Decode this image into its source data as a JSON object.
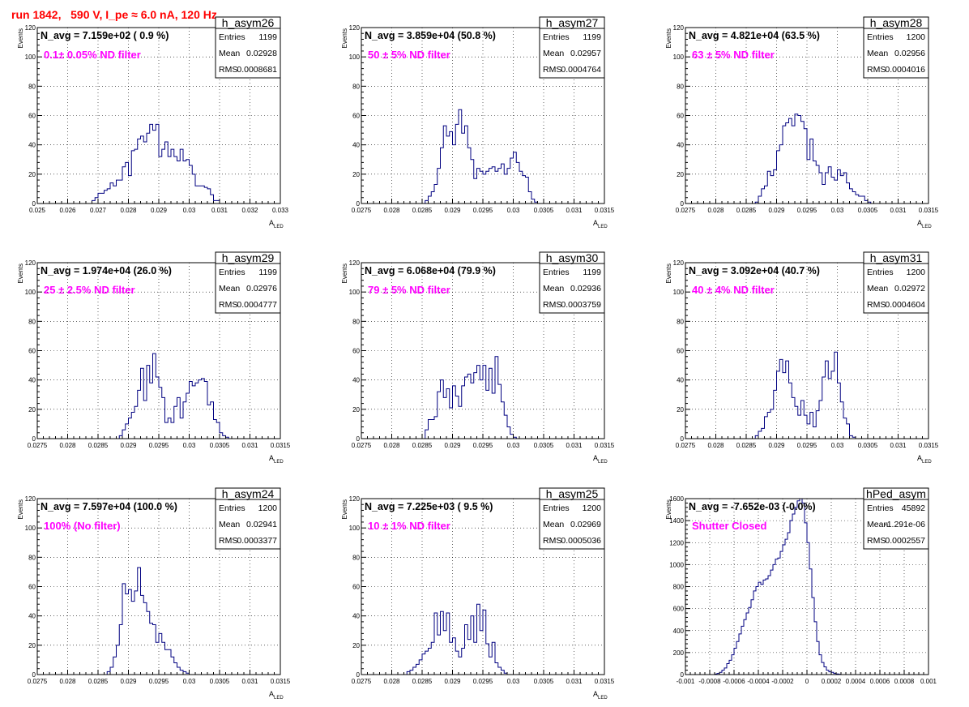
{
  "canvas_title": "run 1842,   590 V, I_pe ≈ 6.0 nA, 120 Hz",
  "colors": {
    "title": "#ff0000",
    "annotation": "#ff00ff",
    "histogram": "#000080",
    "axis": "#000000"
  },
  "chart_data": [
    {
      "type": "bar",
      "name": "h_asym26",
      "header": "N_avg = 7.159e+02 ( 0.9 %)",
      "filter_label": "0.1± 0.05% ND filter",
      "stats": {
        "Entries": "1199",
        "Mean": "0.02928",
        "RMS": "0.0008681"
      },
      "xlabel": "A",
      "xlabel_sub": "LED",
      "ylabel": "Events",
      "xlim": [
        0.025,
        0.033
      ],
      "ylim": [
        0,
        120
      ],
      "grid": true,
      "x_ticks": [
        "0.025",
        "0.026",
        "0.027",
        "0.028",
        "0.029",
        "0.03",
        "0.031",
        "0.032",
        "0.033"
      ],
      "y_ticks": [
        "0",
        "20",
        "40",
        "60",
        "80",
        "100",
        "120"
      ],
      "bin_width": 0.0001,
      "x_start": 0.0268,
      "counts": [
        2,
        4,
        7,
        7,
        9,
        10,
        14,
        12,
        16,
        16,
        25,
        28,
        19,
        36,
        37,
        44,
        46,
        42,
        48,
        54,
        50,
        54,
        32,
        37,
        42,
        32,
        37,
        32,
        29,
        37,
        29,
        30,
        26,
        20,
        12,
        12,
        12,
        11,
        10,
        6,
        2,
        2,
        0
      ]
    },
    {
      "type": "bar",
      "name": "h_asym27",
      "header": "N_avg = 3.859e+04 (50.8 %)",
      "filter_label": "50 ± 5% ND filter",
      "stats": {
        "Entries": "1199",
        "Mean": "0.02957",
        "RMS": "0.0004764"
      },
      "xlabel": "A",
      "xlabel_sub": "LED",
      "ylabel": "Events",
      "xlim": [
        0.0275,
        0.0315
      ],
      "ylim": [
        0,
        120
      ],
      "grid": true,
      "x_ticks": [
        "0.0275",
        "0.028",
        "0.0285",
        "0.029",
        "0.0295",
        "0.03",
        "0.0305",
        "0.031",
        "0.0315"
      ],
      "y_ticks": [
        "0",
        "20",
        "40",
        "60",
        "80",
        "100",
        "120"
      ],
      "bin_width": 5e-05,
      "x_start": 0.02855,
      "counts": [
        2,
        5,
        8,
        13,
        24,
        38,
        53,
        46,
        49,
        40,
        54,
        64,
        48,
        53,
        38,
        30,
        17,
        24,
        22,
        20,
        22,
        24,
        25,
        22,
        24,
        27,
        20,
        24,
        31,
        35,
        28,
        22,
        19,
        18,
        8,
        3,
        1,
        0
      ]
    },
    {
      "type": "bar",
      "name": "h_asym28",
      "header": "N_avg = 4.821e+04 (63.5 %)",
      "filter_label": "63 ± 5% ND filter",
      "stats": {
        "Entries": "1200",
        "Mean": "0.02956",
        "RMS": "0.0004016"
      },
      "xlabel": "A",
      "xlabel_sub": "LED",
      "ylabel": "Events",
      "xlim": [
        0.0275,
        0.0315
      ],
      "ylim": [
        0,
        120
      ],
      "grid": true,
      "x_ticks": [
        "0.0275",
        "0.028",
        "0.0285",
        "0.029",
        "0.0295",
        "0.03",
        "0.0305",
        "0.031",
        "0.0315"
      ],
      "y_ticks": [
        "0",
        "20",
        "40",
        "60",
        "80",
        "100",
        "120"
      ],
      "bin_width": 5e-05,
      "x_start": 0.02865,
      "counts": [
        1,
        5,
        10,
        12,
        22,
        19,
        23,
        36,
        40,
        53,
        55,
        58,
        53,
        61,
        60,
        56,
        51,
        30,
        44,
        29,
        26,
        21,
        13,
        21,
        25,
        18,
        16,
        23,
        19,
        21,
        14,
        10,
        8,
        6,
        5,
        5,
        2,
        1,
        0
      ]
    },
    {
      "type": "bar",
      "name": "h_asym29",
      "header": "N_avg = 1.974e+04 (26.0 %)",
      "filter_label": "25 ± 2.5% ND filter",
      "stats": {
        "Entries": "1199",
        "Mean": "0.02976",
        "RMS": "0.0004777"
      },
      "xlabel": "A",
      "xlabel_sub": "LED",
      "ylabel": "Events",
      "xlim": [
        0.0275,
        0.0315
      ],
      "ylim": [
        0,
        120
      ],
      "grid": true,
      "x_ticks": [
        "0.0275",
        "0.028",
        "0.0285",
        "0.029",
        "0.0295",
        "0.03",
        "0.0305",
        "0.031",
        "0.0315"
      ],
      "y_ticks": [
        "0",
        "20",
        "40",
        "60",
        "80",
        "100",
        "120"
      ],
      "bin_width": 5e-05,
      "x_start": 0.02885,
      "counts": [
        2,
        6,
        10,
        14,
        18,
        22,
        33,
        48,
        26,
        50,
        38,
        58,
        42,
        35,
        28,
        11,
        14,
        11,
        22,
        28,
        14,
        25,
        31,
        39,
        36,
        38,
        40,
        41,
        39,
        23,
        25,
        13,
        11,
        4,
        2,
        1,
        0
      ]
    },
    {
      "type": "bar",
      "name": "h_asym30",
      "header": "N_avg = 6.068e+04 (79.9 %)",
      "filter_label": "79 ± 5% ND filter",
      "stats": {
        "Entries": "1199",
        "Mean": "0.02936",
        "RMS": "0.0003759"
      },
      "xlabel": "A",
      "xlabel_sub": "LED",
      "ylabel": "Events",
      "xlim": [
        0.0275,
        0.0315
      ],
      "ylim": [
        0,
        120
      ],
      "grid": true,
      "x_ticks": [
        "0.0275",
        "0.028",
        "0.0285",
        "0.029",
        "0.0295",
        "0.03",
        "0.0305",
        "0.031",
        "0.0315"
      ],
      "y_ticks": [
        "0",
        "20",
        "40",
        "60",
        "80",
        "100",
        "120"
      ],
      "bin_width": 5e-05,
      "x_start": 0.02855,
      "counts": [
        6,
        13,
        13,
        15,
        32,
        40,
        28,
        34,
        21,
        36,
        29,
        22,
        36,
        42,
        44,
        38,
        45,
        50,
        40,
        50,
        33,
        48,
        31,
        56,
        37,
        25,
        16,
        8,
        3,
        1,
        0
      ]
    },
    {
      "type": "bar",
      "name": "h_asym31",
      "header": "N_avg = 3.092e+04 (40.7 %)",
      "filter_label": "40 ± 4% ND filter",
      "stats": {
        "Entries": "1200",
        "Mean": "0.02972",
        "RMS": "0.0004604"
      },
      "xlabel": "A",
      "xlabel_sub": "LED",
      "ylabel": "Events",
      "xlim": [
        0.0275,
        0.0315
      ],
      "ylim": [
        0,
        120
      ],
      "grid": true,
      "x_ticks": [
        "0.0275",
        "0.028",
        "0.0285",
        "0.029",
        "0.0295",
        "0.03",
        "0.0305",
        "0.031",
        "0.0315"
      ],
      "y_ticks": [
        "0",
        "20",
        "40",
        "60",
        "80",
        "100",
        "120"
      ],
      "bin_width": 5e-05,
      "x_start": 0.02865,
      "counts": [
        2,
        5,
        7,
        15,
        18,
        20,
        33,
        46,
        54,
        45,
        53,
        38,
        28,
        22,
        16,
        26,
        16,
        10,
        18,
        8,
        19,
        26,
        42,
        53,
        41,
        46,
        59,
        38,
        25,
        14,
        10,
        2,
        1,
        0
      ]
    },
    {
      "type": "bar",
      "name": "h_asym24",
      "header": "N_avg = 7.597e+04 (100.0 %)",
      "filter_label": "100% (No filter)",
      "stats": {
        "Entries": "1200",
        "Mean": "0.02941",
        "RMS": "0.0003377"
      },
      "xlabel": "A",
      "xlabel_sub": "LED",
      "ylabel": "Events",
      "xlim": [
        0.0275,
        0.0315
      ],
      "ylim": [
        0,
        120
      ],
      "grid": true,
      "x_ticks": [
        "0.0275",
        "0.028",
        "0.0285",
        "0.029",
        "0.0295",
        "0.03",
        "0.0305",
        "0.031",
        "0.0315"
      ],
      "y_ticks": [
        "0",
        "20",
        "40",
        "60",
        "80",
        "100",
        "120"
      ],
      "bin_width": 5e-05,
      "x_start": 0.02865,
      "counts": [
        2,
        5,
        12,
        20,
        34,
        62,
        55,
        58,
        50,
        57,
        73,
        54,
        49,
        43,
        35,
        34,
        22,
        28,
        22,
        17,
        17,
        12,
        8,
        5,
        3,
        2,
        1,
        0
      ]
    },
    {
      "type": "bar",
      "name": "h_asym25",
      "header": "N_avg = 7.225e+03 ( 9.5 %)",
      "filter_label": "10 ± 1% ND filter",
      "stats": {
        "Entries": "1200",
        "Mean": "0.02969",
        "RMS": "0.0005036"
      },
      "xlabel": "A",
      "xlabel_sub": "LED",
      "ylabel": "Events",
      "xlim": [
        0.0275,
        0.0315
      ],
      "ylim": [
        0,
        120
      ],
      "grid": true,
      "x_ticks": [
        "0.0275",
        "0.028",
        "0.0285",
        "0.029",
        "0.0295",
        "0.03",
        "0.0305",
        "0.031",
        "0.0315"
      ],
      "y_ticks": [
        "0",
        "20",
        "40",
        "60",
        "80",
        "100",
        "120"
      ],
      "bin_width": 5e-05,
      "x_start": 0.02825,
      "counts": [
        2,
        3,
        5,
        7,
        10,
        14,
        16,
        18,
        22,
        42,
        27,
        43,
        30,
        42,
        22,
        25,
        16,
        12,
        18,
        34,
        24,
        40,
        22,
        48,
        30,
        44,
        21,
        12,
        22,
        8,
        5,
        3,
        1,
        0
      ]
    },
    {
      "type": "bar",
      "name": "hPed_asym",
      "header": "N_avg = -7.652e-03 (-0.0%)",
      "filter_label": "Shutter Closed",
      "stats": {
        "Entries": "45892",
        "Mean": "-1.291e-06",
        "RMS": "0.0002557"
      },
      "xlabel": "",
      "xlabel_sub": "",
      "ylabel": "Events",
      "xlim": [
        -0.001,
        0.001
      ],
      "ylim": [
        0,
        1600
      ],
      "grid": true,
      "x_ticks": [
        "-0.001",
        "-0.0008",
        "-0.0006",
        "-0.0004",
        "-0.0002",
        "0",
        "0.0002",
        "0.0004",
        "0.0006",
        "0.0008",
        "0.001"
      ],
      "y_ticks": [
        "0",
        "200",
        "400",
        "600",
        "800",
        "1000",
        "1200",
        "1400",
        "1600"
      ],
      "bin_width": 2e-05,
      "x_start": -0.00076,
      "counts": [
        5,
        10,
        20,
        40,
        60,
        100,
        130,
        180,
        240,
        300,
        370,
        440,
        500,
        560,
        610,
        680,
        760,
        800,
        840,
        820,
        860,
        870,
        900,
        950,
        1000,
        1050,
        1060,
        1120,
        1180,
        1230,
        1290,
        1400,
        1460,
        1520,
        1580,
        1600,
        1560,
        1380,
        1200,
        960,
        700,
        480,
        300,
        180,
        110,
        70,
        40,
        25,
        20,
        10,
        6,
        3,
        0
      ]
    }
  ]
}
